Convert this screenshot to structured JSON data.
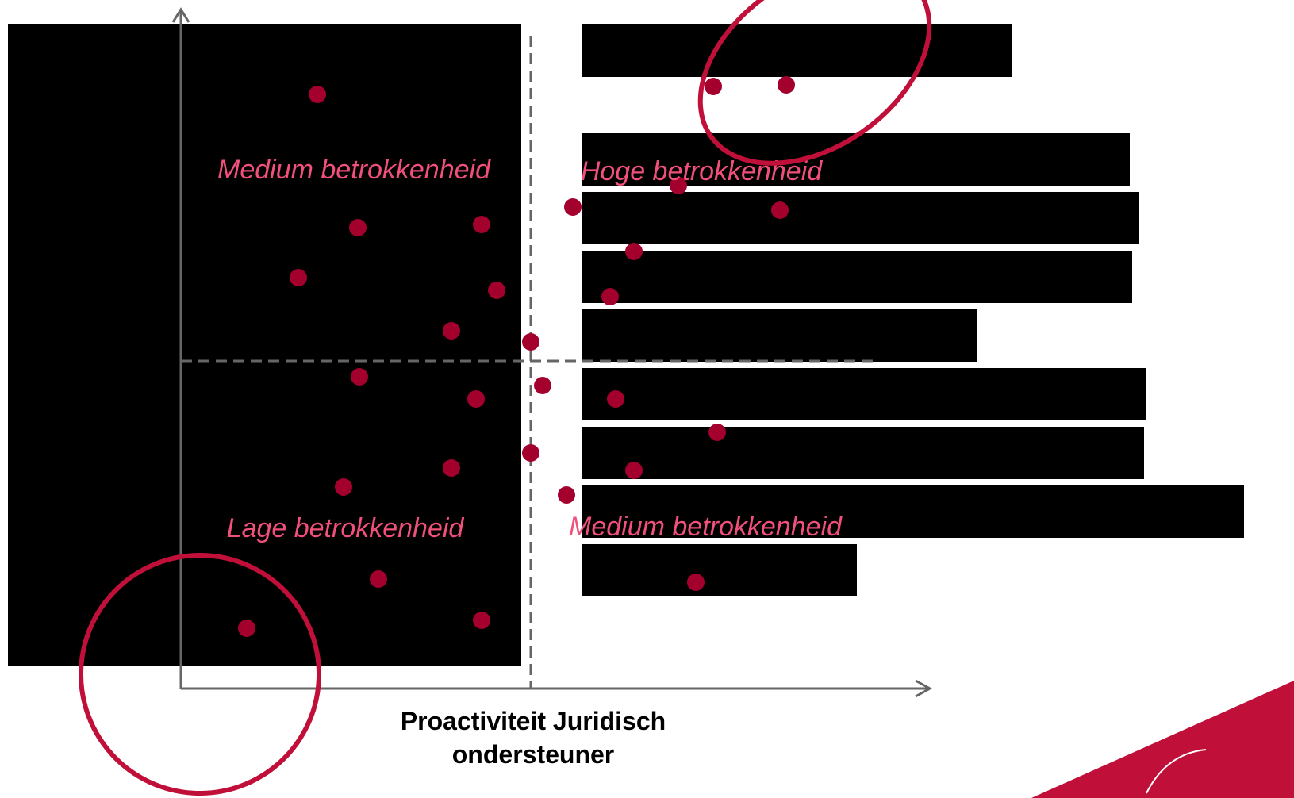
{
  "quadrants": {
    "top_left": "Medium betrokkenheid",
    "top_right": "Hoge betrokkenheid",
    "bottom_left": "Lage betrokkenheid",
    "bottom_right": "Medium betrokkenheid"
  },
  "x_axis_label": [
    "Proactiviteit Juridisch",
    "ondersteuner"
  ]
}
